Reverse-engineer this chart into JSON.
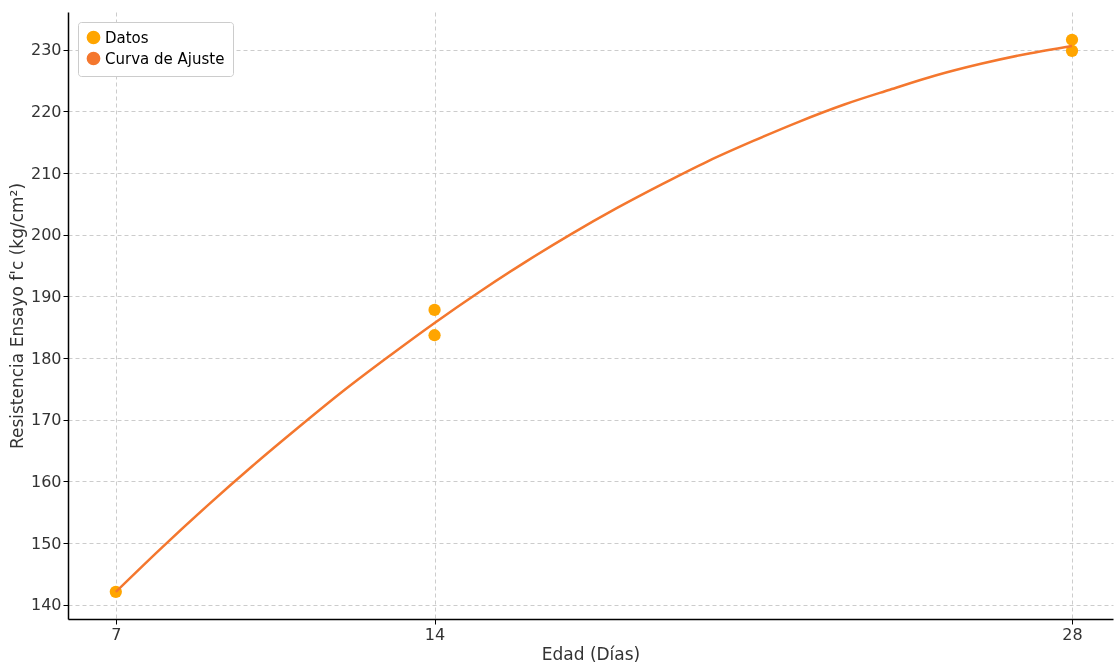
{
  "chart_data": {
    "type": "scatter",
    "xlabel": "Edad (Días)",
    "ylabel": "Resistencia Ensayo f'c (kg/cm²)",
    "xlim": [
      5.95,
      28.9
    ],
    "ylim": [
      137.7,
      236.1
    ],
    "xticks": [
      7,
      14,
      28
    ],
    "yticks": [
      140,
      150,
      160,
      170,
      180,
      190,
      200,
      210,
      220,
      230
    ],
    "grid": true,
    "legend": "top left",
    "series": [
      {
        "name": "Datos",
        "marker": "circle",
        "color": "#ffa500",
        "x": [
          7,
          14,
          14,
          28,
          28
        ],
        "values": [
          142.1,
          187.8,
          183.7,
          231.6,
          229.8
        ]
      },
      {
        "name": "Curva de Ajuste",
        "type": "line",
        "marker": "none",
        "color": "#f4772e",
        "x": [
          7,
          8,
          9,
          10,
          11,
          12,
          13,
          14,
          15,
          16,
          17,
          18,
          19,
          20,
          21,
          22,
          23,
          24,
          25,
          26,
          27,
          28
        ],
        "values": [
          142.1,
          149.2,
          156.0,
          162.5,
          168.7,
          174.7,
          180.3,
          185.7,
          190.8,
          195.6,
          200.1,
          204.3,
          208.2,
          211.9,
          215.2,
          218.3,
          221.1,
          223.5,
          225.8,
          227.7,
          229.3,
          230.6
        ]
      }
    ]
  }
}
